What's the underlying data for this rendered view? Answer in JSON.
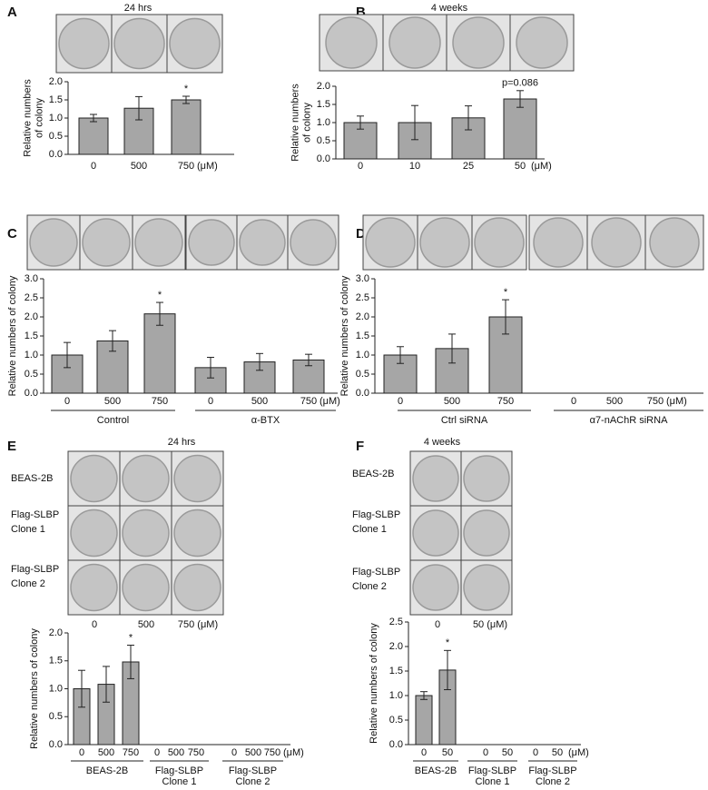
{
  "panels": [
    {
      "letter": "A"
    },
    {
      "letter": "B"
    },
    {
      "letter": "C"
    },
    {
      "letter": "D"
    },
    {
      "letter": "E",
      "row_labels": [
        [
          "BEAS-2B"
        ],
        [
          "Flag-SLBP",
          "Clone 1"
        ],
        [
          "Flag-SLBP",
          "Clone 2"
        ]
      ],
      "plate_labels": [
        "0",
        "500",
        "750 (μM)"
      ]
    },
    {
      "letter": "F",
      "row_labels": [
        [
          "BEAS-2B"
        ],
        [
          "Flag-SLBP",
          "Clone 1"
        ],
        [
          "Flag-SLBP",
          "Clone 2"
        ]
      ],
      "plate_labels": [
        "0",
        "50 (μM)"
      ]
    }
  ],
  "chart_data": [
    {
      "type": "bar",
      "title": "24 hrs",
      "y_label": [
        "Relative numbers",
        "of colony"
      ],
      "unit": "(μM)",
      "categories": [
        "0",
        "500",
        "750"
      ],
      "values": [
        1.0,
        1.27,
        1.5
      ],
      "errors": [
        0.1,
        0.32,
        0.1
      ],
      "annotations": [
        null,
        null,
        "*"
      ],
      "color": "#a6a6a6",
      "ylim": [
        0,
        2
      ],
      "yticks": [
        {
          "value": 0,
          "label": "0.0"
        },
        0.5,
        {
          "value": 1,
          "label": "1.0"
        },
        1.5,
        {
          "value": 2,
          "label": "2.0"
        }
      ]
    },
    {
      "type": "bar",
      "title": "4 weeks",
      "y_label": [
        "Relative numbers",
        "of colony"
      ],
      "unit": "(μM)",
      "categories": [
        "0",
        "10",
        "25",
        "50"
      ],
      "values": [
        1.0,
        1.0,
        1.13,
        1.65
      ],
      "errors": [
        0.18,
        0.47,
        0.33,
        0.23
      ],
      "annotations": [
        null,
        null,
        null,
        "p=0.086"
      ],
      "color": "#a6a6a6",
      "ylim": [
        0,
        2
      ],
      "yticks": [
        {
          "value": 0,
          "label": "0.0"
        },
        0.5,
        {
          "value": 1,
          "label": "1.0"
        },
        1.5,
        {
          "value": 2,
          "label": "2.0"
        }
      ]
    },
    {
      "type": "bar",
      "y_label": [
        "Relative numbers of colony"
      ],
      "unit": "(μM)",
      "groups": [
        [
          "Control"
        ],
        [
          "α-BTX"
        ]
      ],
      "categories": [
        "0",
        "500",
        "750",
        "0",
        "500",
        "750"
      ],
      "values": [
        1.0,
        1.37,
        2.08,
        0.67,
        0.82,
        0.87
      ],
      "errors": [
        0.33,
        0.27,
        0.3,
        0.27,
        0.22,
        0.15
      ],
      "annotations": [
        null,
        null,
        "*",
        null,
        null,
        null
      ],
      "color": "#a6a6a6",
      "ylim": [
        0,
        3
      ],
      "yticks": [
        {
          "value": 0,
          "label": "0.0"
        },
        0.5,
        {
          "value": 1,
          "label": "1.0"
        },
        1.5,
        {
          "value": 2,
          "label": "2.0"
        },
        2.5,
        {
          "value": 3,
          "label": "3.0"
        }
      ]
    },
    {
      "type": "bar",
      "y_label": [
        "Relative numbers of colony"
      ],
      "unit": "(μM)",
      "groups": [
        [
          "Ctrl siRNA"
        ],
        [
          "α7-nAChR siRNA"
        ]
      ],
      "categories": [
        "0",
        "500",
        "750",
        "0",
        "500",
        "750"
      ],
      "values": [
        1.0,
        1.17,
        2.0,
        null,
        null,
        null
      ],
      "errors": [
        0.22,
        0.38,
        0.45,
        null,
        null,
        null
      ],
      "annotations": [
        null,
        null,
        "*",
        null,
        null,
        null
      ],
      "color": "#a6a6a6",
      "ylim": [
        0,
        3
      ],
      "yticks": [
        {
          "value": 0,
          "label": "0.0"
        },
        0.5,
        {
          "value": 1,
          "label": "1.0"
        },
        1.5,
        {
          "value": 2,
          "label": "2.0"
        },
        2.5,
        {
          "value": 3,
          "label": "3.0"
        }
      ]
    },
    {
      "type": "bar",
      "title": "24 hrs",
      "y_label": [
        "Relative numbers of colony"
      ],
      "unit": "(μM)",
      "groups": [
        [
          "BEAS-2B"
        ],
        [
          "Flag-SLBP",
          "Clone 1"
        ],
        [
          "Flag-SLBP",
          "Clone 2"
        ]
      ],
      "categories": [
        "0",
        "500",
        "750",
        "0",
        "500",
        "750",
        "0",
        "500",
        "750"
      ],
      "values": [
        1.0,
        1.08,
        1.48,
        null,
        null,
        null,
        null,
        null,
        null
      ],
      "errors": [
        0.33,
        0.32,
        0.3,
        null,
        null,
        null,
        null,
        null,
        null
      ],
      "annotations": [
        null,
        null,
        "*",
        null,
        null,
        null,
        null,
        null,
        null
      ],
      "color": "#a6a6a6",
      "ylim": [
        0,
        2
      ],
      "yticks": [
        {
          "value": 0,
          "label": "0.0"
        },
        0.5,
        {
          "value": 1,
          "label": "1.0"
        },
        1.5,
        {
          "value": 2,
          "label": "2.0"
        }
      ]
    },
    {
      "type": "bar",
      "title": "4 weeks",
      "y_label": [
        "Relative numbers of colony"
      ],
      "unit": "(μM)",
      "groups": [
        [
          "BEAS-2B"
        ],
        [
          "Flag-SLBP",
          "Clone 1"
        ],
        [
          "Flag-SLBP",
          "Clone 2"
        ]
      ],
      "categories": [
        "0",
        "50",
        "0",
        "50",
        "0",
        "50"
      ],
      "values": [
        1.0,
        1.52,
        null,
        null,
        null,
        null
      ],
      "errors": [
        0.08,
        0.4,
        null,
        null,
        null,
        null
      ],
      "annotations": [
        null,
        "*",
        null,
        null,
        null,
        null
      ],
      "color": "#a6a6a6",
      "ylim": [
        0,
        2.5
      ],
      "yticks": [
        {
          "value": 0,
          "label": "0.0"
        },
        0.5,
        {
          "value": 1,
          "label": "1.0"
        },
        1.5,
        {
          "value": 2,
          "label": "2.0"
        },
        2.5
      ]
    }
  ]
}
